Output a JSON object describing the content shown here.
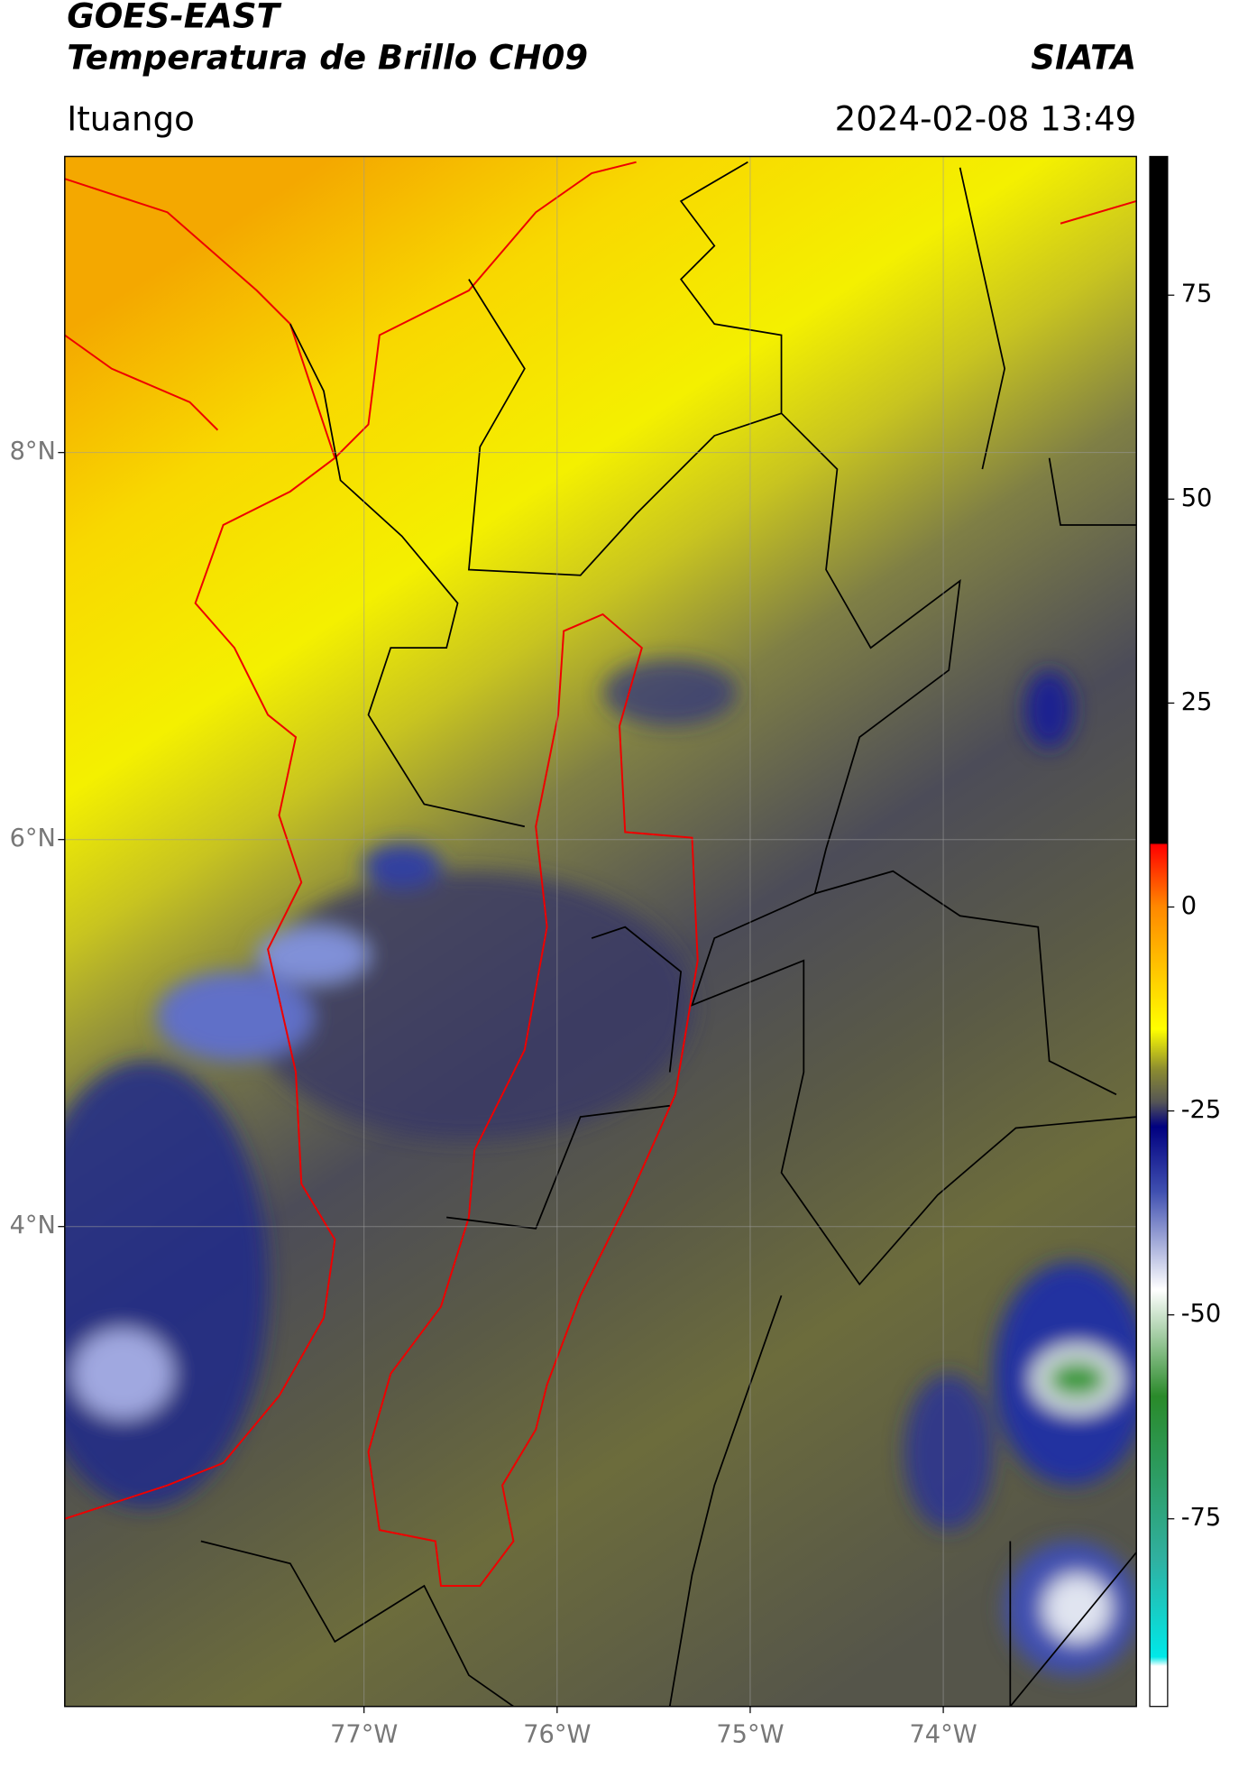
{
  "header": {
    "title_line1": "GOES-EAST",
    "title_line2": "Temperatura de Brillo CH09",
    "source": "SIATA",
    "region": "Ituango",
    "timestamp": "2024-02-08 13:49"
  },
  "map": {
    "lon_lim": [
      -78.55,
      -73.0
    ],
    "lat_lim": [
      1.52,
      9.53
    ],
    "lon_ticks": [
      {
        "value": -77,
        "label": "77°W"
      },
      {
        "value": -76,
        "label": "76°W"
      },
      {
        "value": -75,
        "label": "75°W"
      },
      {
        "value": -74,
        "label": "74°W"
      }
    ],
    "lat_ticks": [
      {
        "value": 8,
        "label": "8°N"
      },
      {
        "value": 6,
        "label": "6°N"
      },
      {
        "value": 4,
        "label": "4°N"
      }
    ]
  },
  "colorbar": {
    "lim": [
      -98,
      92
    ],
    "ticks": [
      75,
      50,
      25,
      0,
      -25,
      -50,
      -75
    ]
  }
}
